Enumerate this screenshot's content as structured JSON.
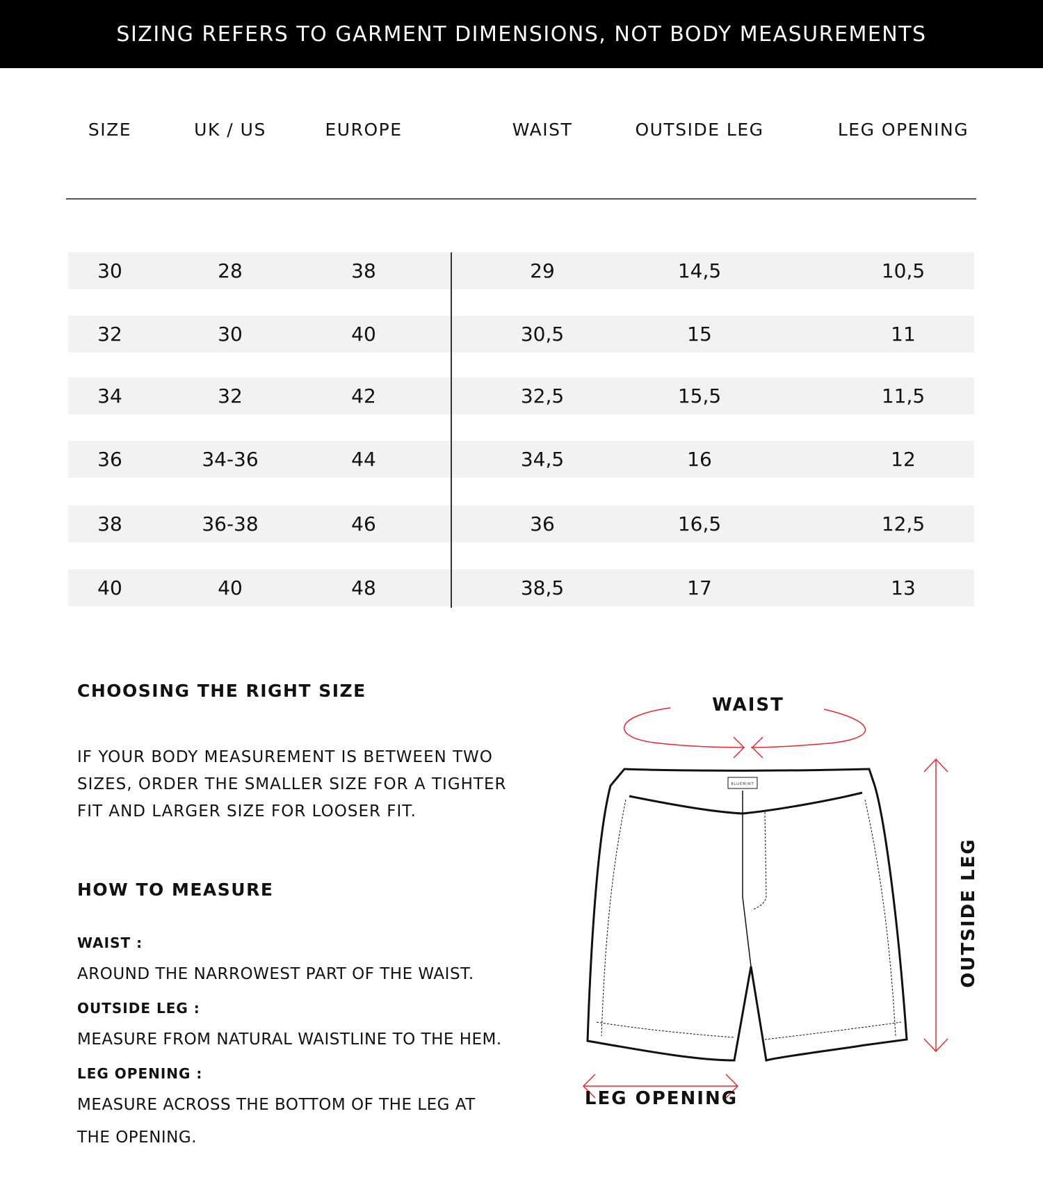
{
  "banner": {
    "text": "SIZING REFERS TO GARMENT DIMENSIONS, NOT BODY MEASUREMENTS"
  },
  "table": {
    "headers": [
      "SIZE",
      "UK / US",
      "EUROPE",
      "WAIST",
      "OUTSIDE LEG",
      "LEG OPENING"
    ],
    "rows": [
      [
        "30",
        "28",
        "38",
        "29",
        "14,5",
        "10,5"
      ],
      [
        "32",
        "30",
        "40",
        "30,5",
        "15",
        "11"
      ],
      [
        "34",
        "32",
        "42",
        "32,5",
        "15,5",
        "11,5"
      ],
      [
        "36",
        "34-36",
        "44",
        "34,5",
        "16",
        "12"
      ],
      [
        "38",
        "36-38",
        "46",
        "36",
        "16,5",
        "12,5"
      ],
      [
        "40",
        "40",
        "48",
        "38,5",
        "17",
        "13"
      ]
    ]
  },
  "choosing": {
    "title": "CHOOSING THE RIGHT SIZE",
    "lines": [
      "IF YOUR BODY MEASUREMENT IS BETWEEN TWO",
      "SIZES, ORDER THE SMALLER SIZE FOR A TIGHTER",
      "FIT AND LARGER SIZE FOR LOOSER FIT."
    ]
  },
  "measure": {
    "title": "HOW TO MEASURE",
    "items": [
      {
        "label": "WAIST :",
        "text": [
          "AROUND THE NARROWEST PART OF THE WAIST."
        ]
      },
      {
        "label": "OUTSIDE LEG :",
        "text": [
          "MEASURE FROM NATURAL WAISTLINE TO THE HEM."
        ]
      },
      {
        "label": "LEG OPENING :",
        "text": [
          "MEASURE ACROSS THE BOTTOM OF THE LEG AT",
          "THE OPENING."
        ]
      }
    ]
  },
  "diagram": {
    "waist_label": "WAIST",
    "outside_leg_label": "OUTSIDE LEG",
    "leg_opening_label": "LEG OPENING",
    "brand_tag": "BLUEMINT",
    "arrow_color": "#e8262b"
  }
}
